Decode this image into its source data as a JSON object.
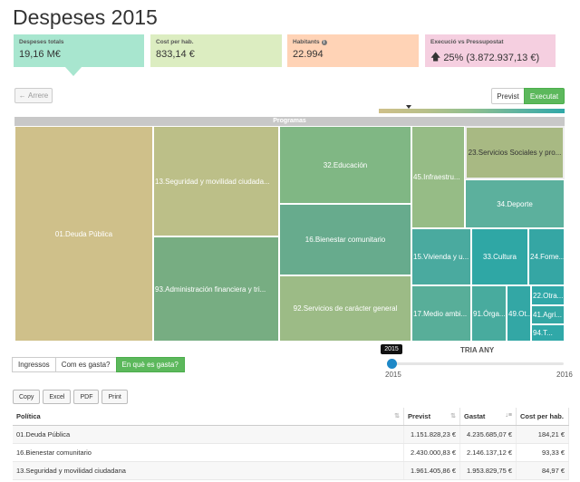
{
  "page": {
    "title": "Despeses 2015"
  },
  "kpis": [
    {
      "label": "Despeses totals",
      "value": "19,16 M€",
      "color": "#a8e6cf"
    },
    {
      "label": "Cost per hab.",
      "value": "833,14 €",
      "color": "#dcedc1"
    },
    {
      "label": "Habitants",
      "value": "22.994",
      "color": "#ffd3b6",
      "icon": "info-icon"
    },
    {
      "label": "Execució vs Pressupostat",
      "value": "25% (3.872.937,13 €)",
      "color": "#f5cfe0",
      "icon": "arrow-up-icon"
    }
  ],
  "nav": {
    "back_label": "Arrere"
  },
  "mode_toggle": {
    "previst_label": "Previst",
    "executat_label": "Executat",
    "active": "Executat"
  },
  "treemap": {
    "header": "Programas",
    "cells": [
      {
        "label": "01.Deuda Pública",
        "color": "#cfc08a"
      },
      {
        "label": "13.Seguridad y movilidad ciudada...",
        "color": "#bcbf88"
      },
      {
        "label": "93.Administración financiera y tri...",
        "color": "#77ad82"
      },
      {
        "label": "32.Educación",
        "color": "#80b784"
      },
      {
        "label": "16.Bienestar comunitario",
        "color": "#67ab8d"
      },
      {
        "label": "92.Servicios de carácter general",
        "color": "#9cbb86"
      },
      {
        "label": "45.Infraestru...",
        "color": "#96bc86"
      },
      {
        "label": "23.Servicios Sociales y pro...",
        "color": "#a8b983"
      },
      {
        "label": "34.Deporte",
        "color": "#5cb09d"
      },
      {
        "label": "15.Vivienda y u...",
        "color": "#4aaa9f"
      },
      {
        "label": "33.Cultura",
        "color": "#2fa7a5"
      },
      {
        "label": "24.Fome...",
        "color": "#35a6a4"
      },
      {
        "label": "17.Medio ambi...",
        "color": "#58ae99"
      },
      {
        "label": "91.Órga...",
        "color": "#48ab9e"
      },
      {
        "label": "49.Ot...",
        "color": "#33a7a5"
      },
      {
        "label": "22.Otra...",
        "color": "#30a8a8"
      },
      {
        "label": "41.Agri...",
        "color": "#34a7a4"
      },
      {
        "label": "94.T...",
        "color": "#30a8a8"
      }
    ]
  },
  "view_toggle": {
    "items": [
      "Ingressos",
      "Com es gasta?",
      "En què es gasta?"
    ],
    "active": "En què es gasta?"
  },
  "year_slider": {
    "title": "TRIA ANY",
    "min": "2015",
    "max": "2016",
    "value": "2015",
    "position": 0.0
  },
  "export": {
    "buttons": [
      "Copy",
      "Excel",
      "PDF",
      "Print"
    ]
  },
  "table": {
    "columns": [
      "Política",
      "Previst",
      "Gastat",
      "Cost per hab."
    ],
    "rows": [
      [
        "01.Deuda Pública",
        "1.151.828,23 €",
        "4.235.685,07 €",
        "184,21 €"
      ],
      [
        "16.Bienestar comunitario",
        "2.430.000,83 €",
        "2.146.137,12 €",
        "93,33 €"
      ],
      [
        "13.Seguridad y movilidad ciudadana",
        "1.961.405,86 €",
        "1.953.829,75 €",
        "84,97 €"
      ]
    ]
  }
}
